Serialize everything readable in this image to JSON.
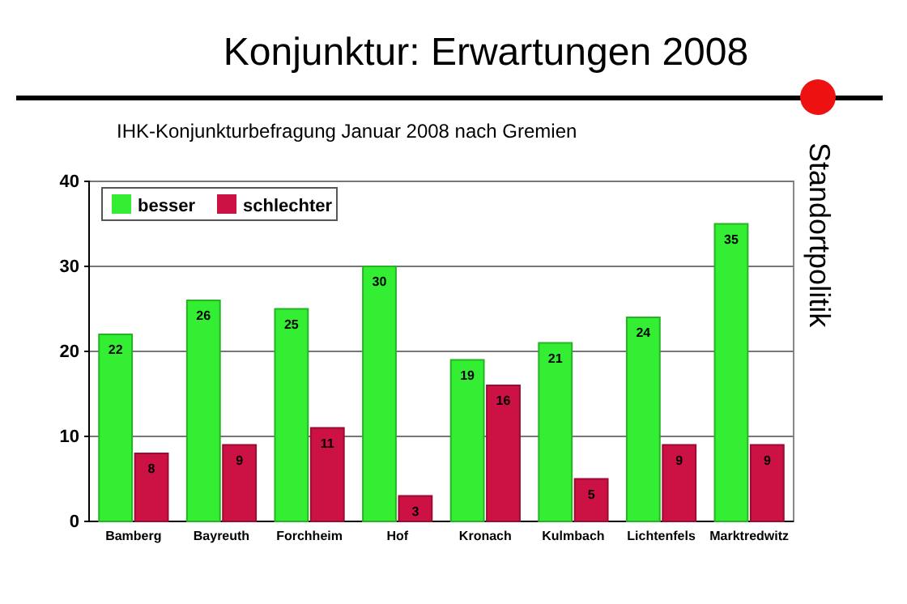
{
  "chart_data": {
    "type": "bar",
    "title": "Konjunktur: Erwartungen 2008",
    "subtitle": "IHK-Konjunkturbefragung Januar 2008 nach Gremien",
    "annotations": [
      "Standortpolitik"
    ],
    "categories": [
      "Bamberg",
      "Bayreuth",
      "Forchheim",
      "Hof",
      "Kronach",
      "Kulmbach",
      "Lichtenfels",
      "Marktredwitz"
    ],
    "series": [
      {
        "name": "besser",
        "color": "#33ee33",
        "values": [
          22,
          26,
          25,
          30,
          19,
          21,
          24,
          35
        ]
      },
      {
        "name": "schlechter",
        "color": "#cc1144",
        "values": [
          8,
          9,
          11,
          3,
          16,
          5,
          9,
          9
        ]
      }
    ],
    "ylim": [
      0,
      40
    ],
    "yticks": [
      0,
      10,
      20,
      30,
      40
    ],
    "grid": "y",
    "legend": "top left",
    "data_labels": true
  }
}
